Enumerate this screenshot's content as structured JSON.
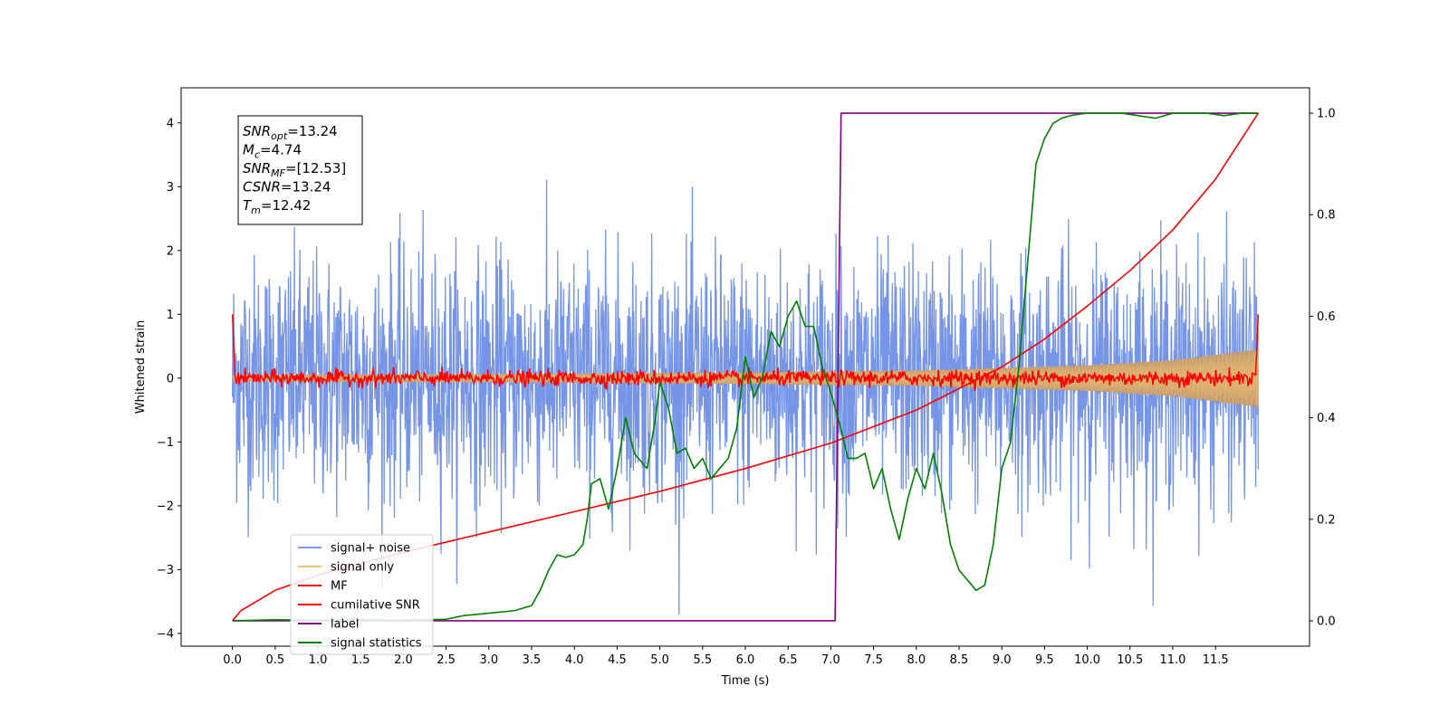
{
  "chart_data": {
    "type": "line",
    "xlabel": "Time (s)",
    "ylabel": "Whitened strain",
    "xlim": [
      -0.6,
      12.6
    ],
    "ylim": [
      -4.2,
      4.55
    ],
    "y2lim": [
      -0.05,
      1.05
    ],
    "grid": false,
    "legend_position": "lower-left",
    "x_ticks": [
      "0.0",
      "0.5",
      "1.0",
      "1.5",
      "2.0",
      "2.5",
      "3.0",
      "3.5",
      "4.0",
      "4.5",
      "5.0",
      "5.5",
      "6.0",
      "6.5",
      "7.0",
      "7.5",
      "8.0",
      "8.5",
      "9.0",
      "9.5",
      "10.0",
      "10.5",
      "11.0",
      "11.5"
    ],
    "y_ticks": [
      "−4",
      "−3",
      "−2",
      "−1",
      "0",
      "1",
      "2",
      "3",
      "4"
    ],
    "y2_ticks": [
      "0.0",
      "0.2",
      "0.4",
      "0.6",
      "0.8",
      "1.0"
    ],
    "stats": [
      {
        "name": "SNR",
        "sub": "opt",
        "value": "=13.24"
      },
      {
        "name": "M",
        "sub": "c",
        "value": "=4.74"
      },
      {
        "name": "SNR",
        "sub": "MF",
        "value": "=[12.53]"
      },
      {
        "name": "CSNR",
        "sub": "",
        "value": "=13.24"
      },
      {
        "name": "T",
        "sub": "m",
        "value": "=12.42"
      }
    ],
    "series": [
      {
        "name": "signal+ noise",
        "color": "#6f8fe6",
        "axis": "left",
        "duration": 12.0,
        "noise_std": 0.95
      },
      {
        "name": "signal only",
        "color": "#f5c56e",
        "axis": "left",
        "envelope": {
          "t": [
            0,
            2,
            4,
            6,
            8,
            10,
            11,
            12
          ],
          "amp": [
            0.05,
            0.06,
            0.07,
            0.09,
            0.12,
            0.2,
            0.28,
            0.45
          ]
        }
      },
      {
        "name": "MF",
        "color": "#ff0000",
        "axis": "left",
        "start_value": 1.0,
        "end_value": 1.0,
        "noise_amp": 0.06
      },
      {
        "name": "cumilative SNR",
        "color": "#ff0000",
        "axis": "right",
        "x": [
          0.0,
          0.1,
          0.5,
          1.0,
          2.0,
          3.0,
          4.0,
          5.0,
          6.0,
          7.0,
          8.0,
          9.0,
          9.5,
          10.0,
          10.5,
          11.0,
          11.5,
          12.0
        ],
        "y": [
          0.0,
          0.02,
          0.06,
          0.09,
          0.135,
          0.175,
          0.215,
          0.255,
          0.3,
          0.35,
          0.415,
          0.5,
          0.555,
          0.62,
          0.69,
          0.77,
          0.87,
          1.0
        ]
      },
      {
        "name": "label",
        "color": "#800080",
        "axis": "right",
        "x": [
          0.0,
          7.05,
          7.12,
          12.0
        ],
        "y": [
          0.0,
          0.0,
          1.0,
          1.0
        ]
      },
      {
        "name": "signal statistics",
        "color": "#008000",
        "axis": "right",
        "x": [
          0.0,
          0.5,
          1.0,
          1.5,
          2.0,
          2.5,
          2.7,
          3.0,
          3.3,
          3.5,
          3.6,
          3.7,
          3.8,
          3.9,
          4.0,
          4.1,
          4.15,
          4.2,
          4.3,
          4.4,
          4.5,
          4.6,
          4.7,
          4.75,
          4.85,
          4.95,
          5.0,
          5.1,
          5.2,
          5.3,
          5.4,
          5.5,
          5.6,
          5.7,
          5.8,
          5.9,
          6.0,
          6.1,
          6.2,
          6.3,
          6.4,
          6.5,
          6.6,
          6.7,
          6.8,
          6.9,
          7.0,
          7.1,
          7.2,
          7.3,
          7.4,
          7.5,
          7.6,
          7.7,
          7.8,
          7.9,
          8.0,
          8.1,
          8.2,
          8.3,
          8.4,
          8.5,
          8.6,
          8.7,
          8.8,
          8.9,
          9.0,
          9.1,
          9.2,
          9.3,
          9.4,
          9.5,
          9.6,
          9.7,
          9.8,
          9.9,
          10.0,
          10.2,
          10.4,
          10.6,
          10.8,
          11.0,
          11.2,
          11.4,
          11.6,
          11.8,
          12.0
        ],
        "y": [
          0.0,
          0.002,
          0.001,
          0.002,
          0.001,
          0.003,
          0.01,
          0.015,
          0.02,
          0.03,
          0.06,
          0.1,
          0.13,
          0.125,
          0.13,
          0.15,
          0.2,
          0.27,
          0.28,
          0.22,
          0.3,
          0.4,
          0.33,
          0.32,
          0.3,
          0.4,
          0.47,
          0.42,
          0.33,
          0.34,
          0.3,
          0.32,
          0.28,
          0.3,
          0.32,
          0.38,
          0.52,
          0.44,
          0.48,
          0.57,
          0.54,
          0.6,
          0.63,
          0.58,
          0.58,
          0.5,
          0.45,
          0.39,
          0.32,
          0.32,
          0.33,
          0.26,
          0.3,
          0.22,
          0.16,
          0.24,
          0.3,
          0.26,
          0.33,
          0.25,
          0.15,
          0.1,
          0.08,
          0.06,
          0.07,
          0.15,
          0.3,
          0.35,
          0.5,
          0.7,
          0.9,
          0.95,
          0.98,
          0.99,
          0.995,
          0.998,
          1.0,
          1.0,
          1.0,
          0.995,
          0.99,
          1.0,
          1.0,
          1.0,
          0.995,
          1.0,
          1.0
        ]
      }
    ]
  }
}
